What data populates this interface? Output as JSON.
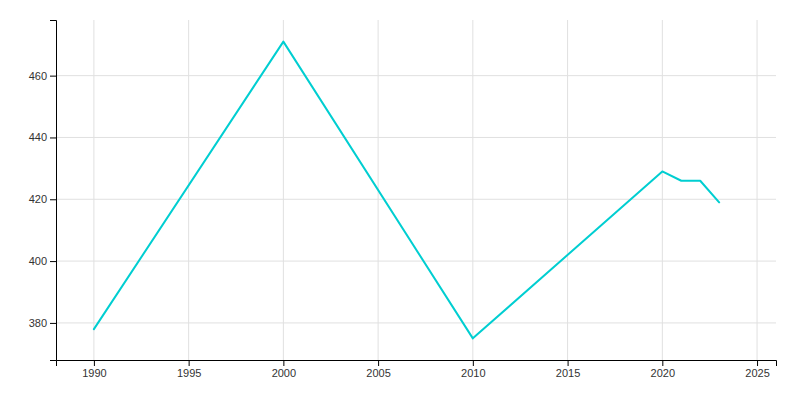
{
  "chart_data": {
    "type": "line",
    "x": [
      1990,
      2000,
      2010,
      2020,
      2021,
      2022,
      2023
    ],
    "values": [
      378,
      471,
      375,
      429,
      426,
      426,
      419
    ],
    "color": "#00CED1",
    "xlim": [
      1988,
      2026
    ],
    "ylim": [
      368,
      478
    ],
    "xticks": [
      1990,
      1995,
      2000,
      2005,
      2010,
      2015,
      2020,
      2025
    ],
    "yticks": [
      380,
      400,
      420,
      440,
      460
    ],
    "grid": true
  }
}
